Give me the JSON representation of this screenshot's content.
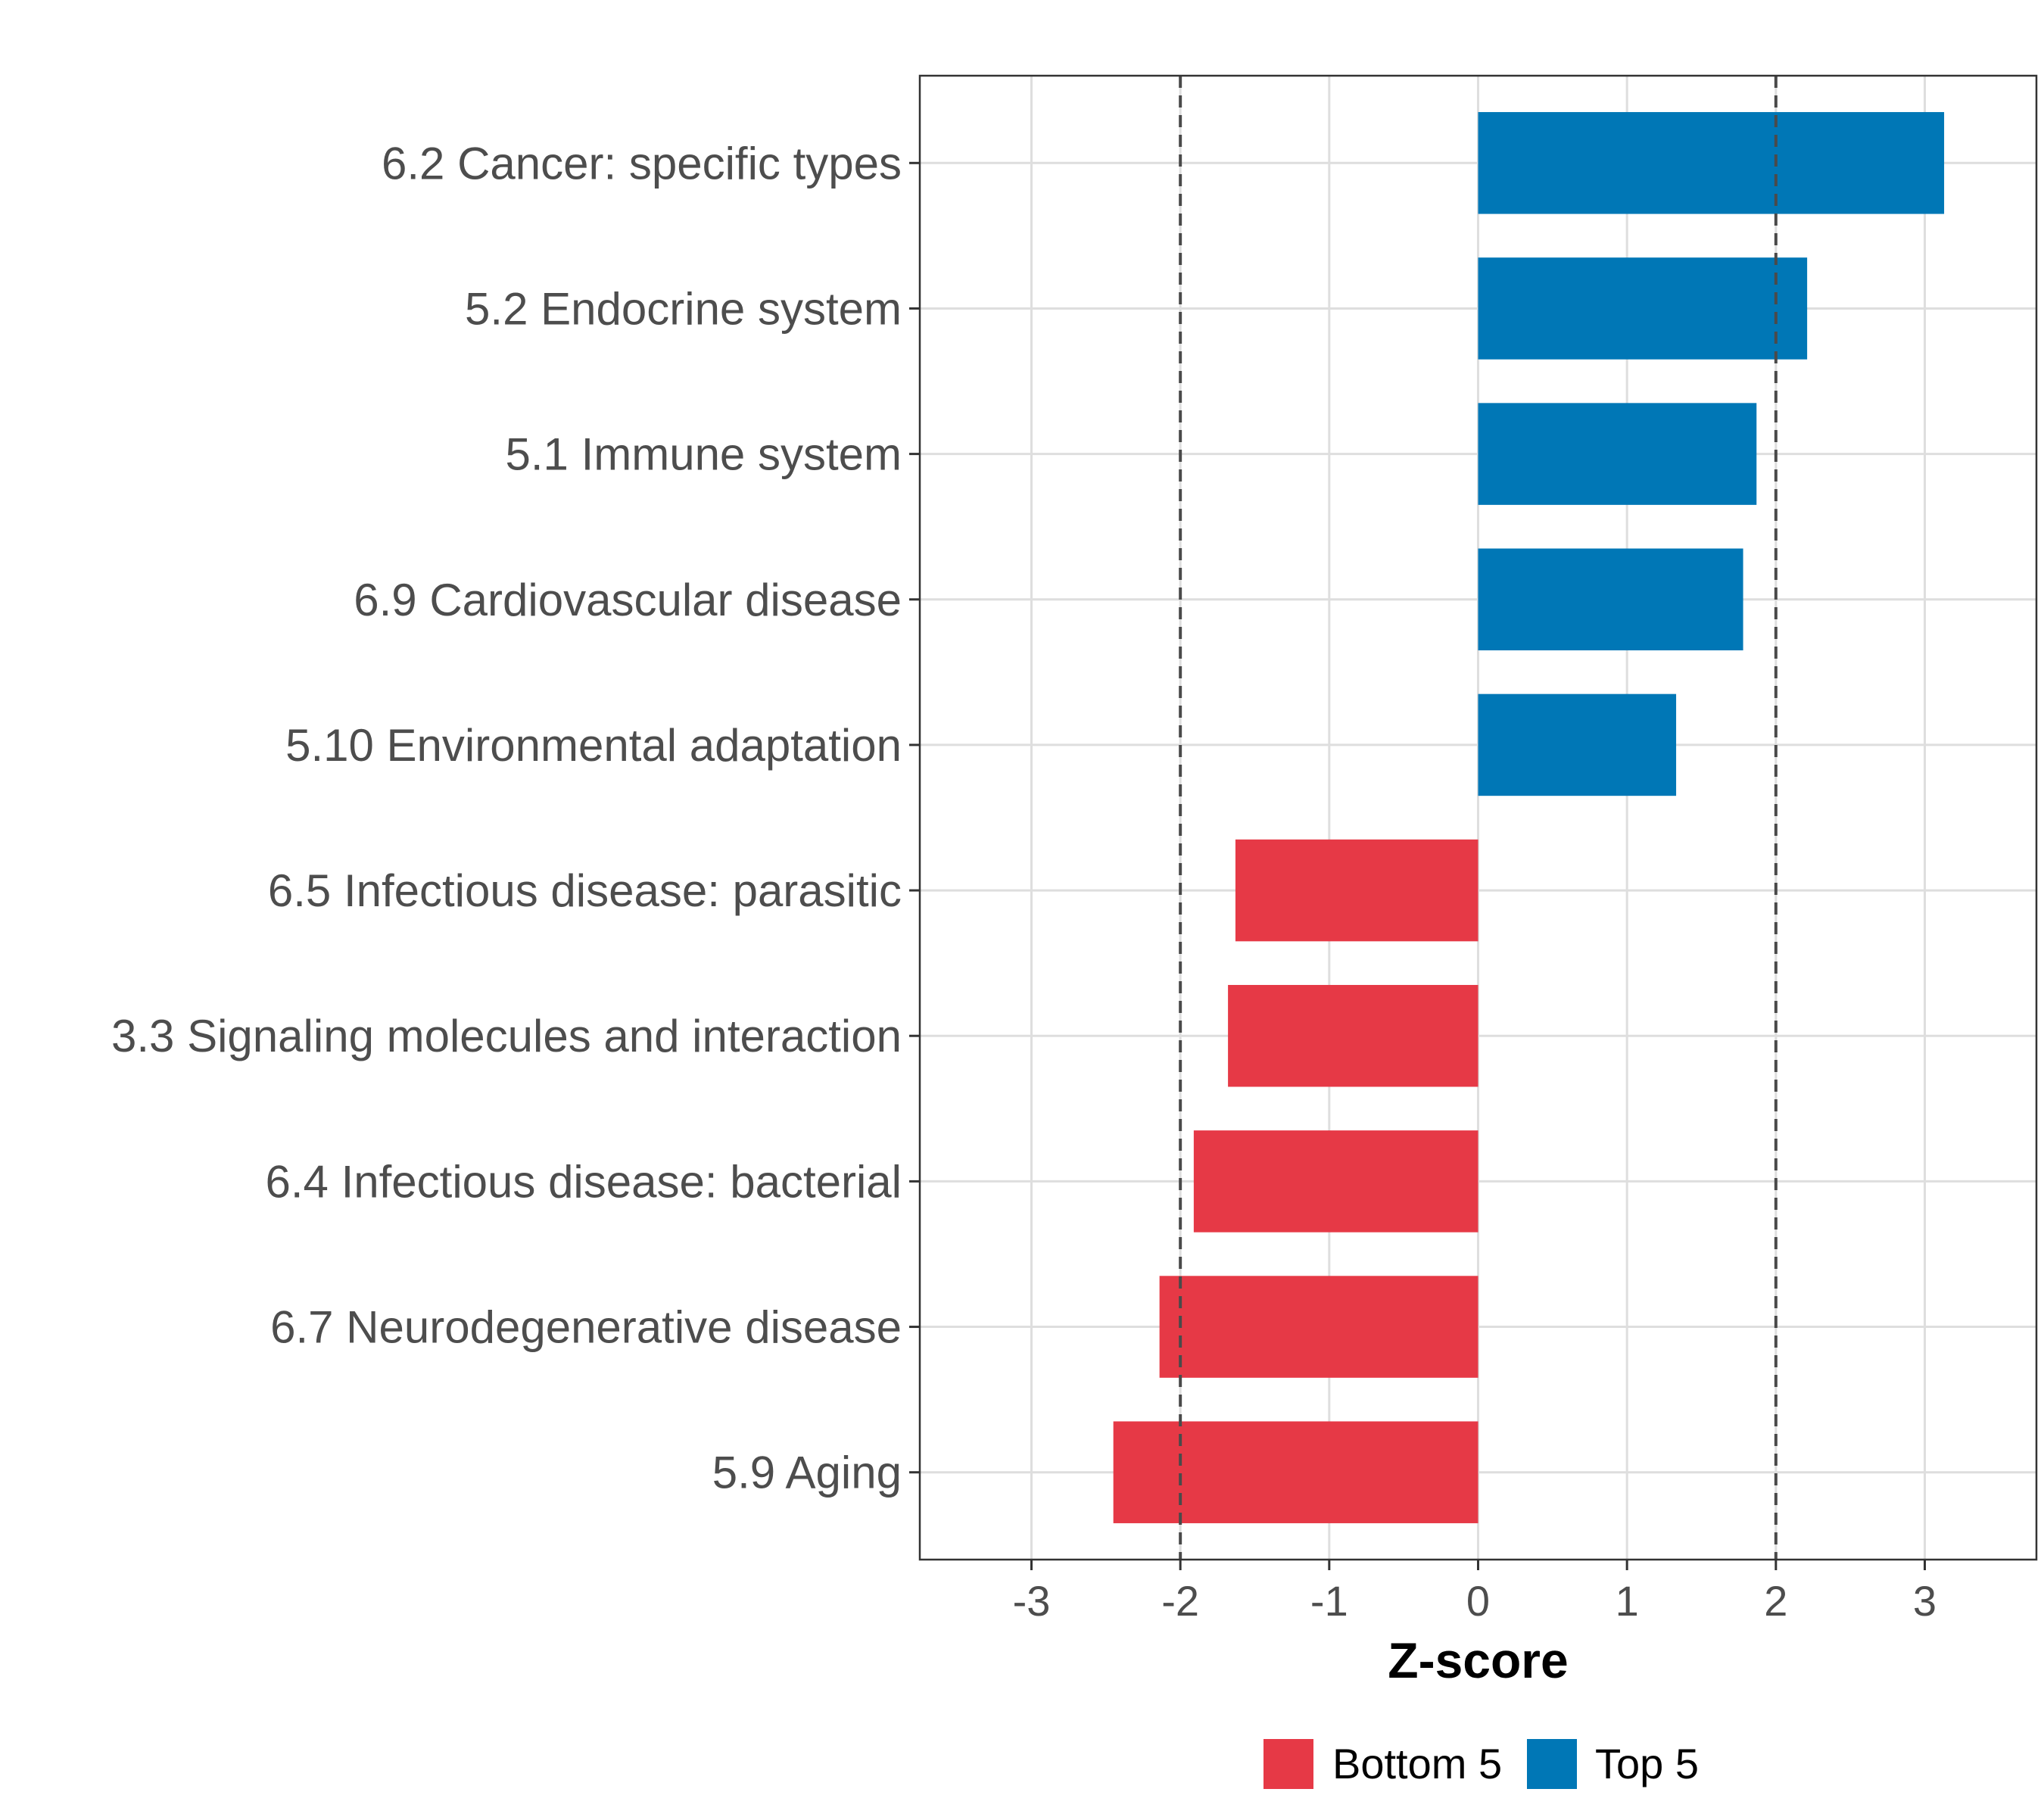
{
  "chart_data": {
    "type": "bar",
    "orientation": "horizontal",
    "title": "",
    "xlabel": "Z-score",
    "ylabel": "",
    "xlim": [
      -3.75,
      3.75
    ],
    "xticks": [
      -3,
      -2,
      -1,
      0,
      1,
      2,
      3
    ],
    "xtick_labels": [
      "-3",
      "-2",
      "-1",
      "0",
      "1",
      "2",
      "3"
    ],
    "reference_lines": [
      -2,
      2
    ],
    "grid": true,
    "legend_position": "bottom",
    "categories": [
      "6.2 Cancer: specific types",
      "5.2 Endocrine system",
      "5.1 Immune system",
      "6.9 Cardiovascular disease",
      "5.10 Environmental adaptation",
      "6.5 Infectious disease: parasitic",
      "3.3 Signaling molecules and interaction",
      "6.4 Infectious disease: bacterial",
      "6.7 Neurodegenerative disease",
      "5.9 Aging"
    ],
    "values": [
      3.13,
      2.21,
      1.87,
      1.78,
      1.33,
      -1.63,
      -1.68,
      -1.91,
      -2.14,
      -2.45
    ],
    "groups": [
      "Top 5",
      "Top 5",
      "Top 5",
      "Top 5",
      "Top 5",
      "Bottom 5",
      "Bottom 5",
      "Bottom 5",
      "Bottom 5",
      "Bottom 5"
    ],
    "legend": [
      {
        "name": "Bottom 5",
        "color": "#E63946"
      },
      {
        "name": "Top 5",
        "color": "#0077B6"
      }
    ]
  }
}
